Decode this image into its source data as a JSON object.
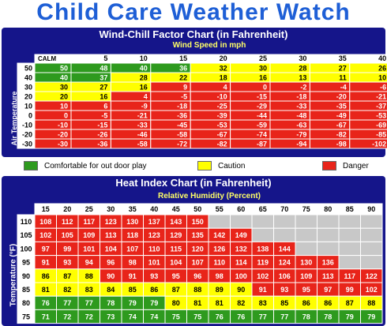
{
  "page_title": "Child Care Weather Watch",
  "colors": {
    "comfortable": "#2e9a1e",
    "caution": "#ffff00",
    "danger": "#e8241a",
    "na": "#c8c8c8",
    "panel": "#15158a"
  },
  "legend": [
    {
      "label": "Comfortable for out door play",
      "color": "#2e9a1e"
    },
    {
      "label": "Caution",
      "color": "#ffff00"
    },
    {
      "label": "Danger",
      "color": "#e8241a"
    }
  ],
  "chart_data": [
    {
      "type": "table",
      "title": "Wind-Chill Factor Chart (in Fahrenheit)",
      "column_header_title": "Wind Speed in mph",
      "row_header_title": "Air Temperature",
      "corner_label": "CALM",
      "columns": [
        "5",
        "10",
        "15",
        "20",
        "25",
        "30",
        "35",
        "40"
      ],
      "rows": [
        "50",
        "40",
        "30",
        "20",
        "10",
        "0",
        "-10",
        "-20",
        "-30"
      ],
      "values": [
        [
          "50",
          "48",
          "40",
          "36",
          "32",
          "30",
          "28",
          "27",
          "26"
        ],
        [
          "40",
          "37",
          "28",
          "22",
          "18",
          "16",
          "13",
          "11",
          "10"
        ],
        [
          "30",
          "27",
          "16",
          "9",
          "4",
          "0",
          "-2",
          "-4",
          "-6"
        ],
        [
          "20",
          "16",
          "4",
          "-5",
          "-10",
          "-15",
          "-18",
          "-20",
          "-21"
        ],
        [
          "10",
          "6",
          "-9",
          "-18",
          "-25",
          "-29",
          "-33",
          "-35",
          "-37"
        ],
        [
          "0",
          "-5",
          "-21",
          "-36",
          "-39",
          "-44",
          "-48",
          "-49",
          "-53"
        ],
        [
          "-10",
          "-15",
          "-33",
          "-45",
          "-53",
          "-59",
          "-63",
          "-67",
          "-69"
        ],
        [
          "-20",
          "-26",
          "-46",
          "-58",
          "-67",
          "-74",
          "-79",
          "-82",
          "-85"
        ],
        [
          "-30",
          "-36",
          "-58",
          "-72",
          "-82",
          "-87",
          "-94",
          "-98",
          "-102"
        ]
      ],
      "categories_grid": [
        [
          "G",
          "G",
          "G",
          "G",
          "Y",
          "Y",
          "Y",
          "Y",
          "Y"
        ],
        [
          "G",
          "G",
          "Y",
          "Y",
          "Y",
          "Y",
          "Y",
          "Y",
          "Y"
        ],
        [
          "Y",
          "Y",
          "Y",
          "R",
          "R",
          "R",
          "R",
          "R",
          "R"
        ],
        [
          "Y",
          "Y",
          "R",
          "R",
          "R",
          "R",
          "R",
          "R",
          "R"
        ],
        [
          "R",
          "R",
          "R",
          "R",
          "R",
          "R",
          "R",
          "R",
          "R"
        ],
        [
          "R",
          "R",
          "R",
          "R",
          "R",
          "R",
          "R",
          "R",
          "R"
        ],
        [
          "R",
          "R",
          "R",
          "R",
          "R",
          "R",
          "R",
          "R",
          "R"
        ],
        [
          "R",
          "R",
          "R",
          "R",
          "R",
          "R",
          "R",
          "R",
          "R"
        ],
        [
          "R",
          "R",
          "R",
          "R",
          "R",
          "R",
          "R",
          "R",
          "R"
        ]
      ]
    },
    {
      "type": "table",
      "title": "Heat Index Chart (in Fahrenheit)",
      "column_header_title": "Relative Humidity (Percent)",
      "row_header_title": "Temperature (°F)",
      "columns": [
        "15",
        "20",
        "25",
        "30",
        "35",
        "40",
        "45",
        "50",
        "55",
        "60",
        "65",
        "70",
        "75",
        "80",
        "85",
        "90"
      ],
      "rows": [
        "110",
        "105",
        "100",
        "95",
        "90",
        "85",
        "80",
        "75"
      ],
      "values": [
        [
          "108",
          "112",
          "117",
          "123",
          "130",
          "137",
          "143",
          "150",
          "",
          "",
          "",
          "",
          "",
          "",
          "",
          ""
        ],
        [
          "102",
          "105",
          "109",
          "113",
          "118",
          "123",
          "129",
          "135",
          "142",
          "149",
          "",
          "",
          "",
          "",
          "",
          ""
        ],
        [
          "97",
          "99",
          "101",
          "104",
          "107",
          "110",
          "115",
          "120",
          "126",
          "132",
          "138",
          "144",
          "",
          "",
          "",
          ""
        ],
        [
          "91",
          "93",
          "94",
          "96",
          "98",
          "101",
          "104",
          "107",
          "110",
          "114",
          "119",
          "124",
          "130",
          "136",
          "",
          ""
        ],
        [
          "86",
          "87",
          "88",
          "90",
          "91",
          "93",
          "95",
          "96",
          "98",
          "100",
          "102",
          "106",
          "109",
          "113",
          "117",
          "122"
        ],
        [
          "81",
          "82",
          "83",
          "84",
          "85",
          "86",
          "87",
          "88",
          "89",
          "90",
          "91",
          "93",
          "95",
          "97",
          "99",
          "102"
        ],
        [
          "76",
          "77",
          "77",
          "78",
          "79",
          "79",
          "80",
          "81",
          "81",
          "82",
          "83",
          "85",
          "86",
          "86",
          "87",
          "88"
        ],
        [
          "71",
          "72",
          "72",
          "73",
          "74",
          "74",
          "75",
          "75",
          "76",
          "76",
          "77",
          "77",
          "78",
          "78",
          "79",
          "79"
        ]
      ],
      "categories_grid": [
        [
          "R",
          "R",
          "R",
          "R",
          "R",
          "R",
          "R",
          "R",
          "N",
          "N",
          "N",
          "N",
          "N",
          "N",
          "N",
          "N"
        ],
        [
          "R",
          "R",
          "R",
          "R",
          "R",
          "R",
          "R",
          "R",
          "R",
          "R",
          "N",
          "N",
          "N",
          "N",
          "N",
          "N"
        ],
        [
          "R",
          "R",
          "R",
          "R",
          "R",
          "R",
          "R",
          "R",
          "R",
          "R",
          "R",
          "R",
          "N",
          "N",
          "N",
          "N"
        ],
        [
          "R",
          "R",
          "R",
          "R",
          "R",
          "R",
          "R",
          "R",
          "R",
          "R",
          "R",
          "R",
          "R",
          "R",
          "N",
          "N"
        ],
        [
          "Y",
          "Y",
          "Y",
          "R",
          "R",
          "R",
          "R",
          "R",
          "R",
          "R",
          "R",
          "R",
          "R",
          "R",
          "R",
          "R"
        ],
        [
          "Y",
          "Y",
          "Y",
          "Y",
          "Y",
          "Y",
          "Y",
          "Y",
          "Y",
          "Y",
          "R",
          "R",
          "R",
          "R",
          "R",
          "R"
        ],
        [
          "G",
          "G",
          "G",
          "G",
          "G",
          "G",
          "Y",
          "Y",
          "Y",
          "Y",
          "Y",
          "Y",
          "Y",
          "Y",
          "Y",
          "Y"
        ],
        [
          "G",
          "G",
          "G",
          "G",
          "G",
          "G",
          "G",
          "G",
          "G",
          "G",
          "G",
          "G",
          "G",
          "G",
          "G",
          "G"
        ]
      ]
    }
  ]
}
